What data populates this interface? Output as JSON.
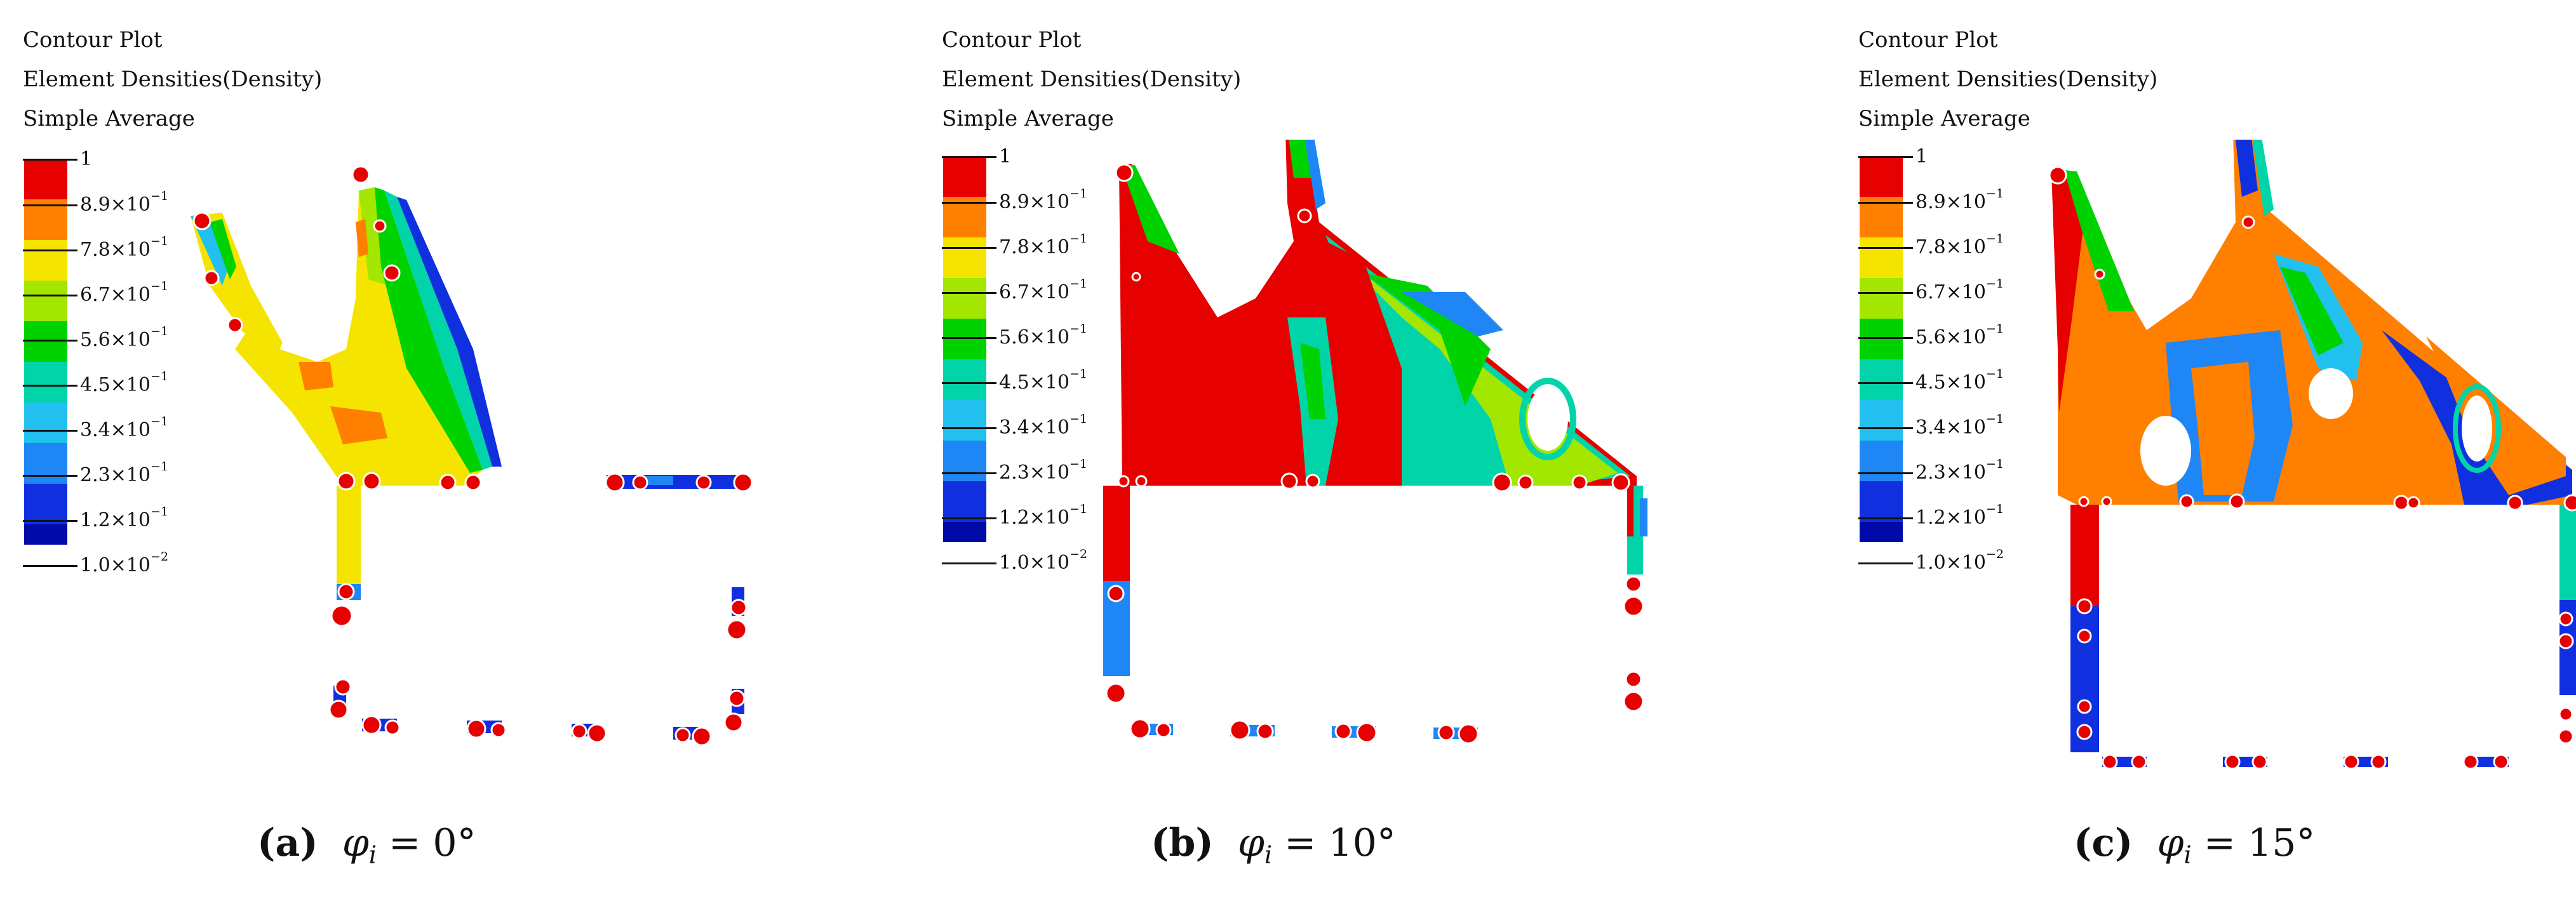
{
  "colors": {
    "red": "#e60000",
    "orange": "#ff7f00",
    "yellow": "#f5e400",
    "lime": "#a3e600",
    "green": "#00d200",
    "teal": "#00d4a8",
    "cyan": "#22c0ee",
    "sky": "#1f86f5",
    "blue": "#1030e0",
    "navy": "#000aa8"
  },
  "legend_colors": [
    "#e60000",
    "#ff7f00",
    "#f5e400",
    "#a3e600",
    "#00d200",
    "#00d4a8",
    "#22c0ee",
    "#1f86f5",
    "#1030e0",
    "#000aa8"
  ],
  "panels": [
    {
      "header_line1": "Contour Plot",
      "header_line2": "Element Densities(Density)",
      "header_line3": "Simple Average",
      "legend_top": "1",
      "legend_base": [
        "8.9×10",
        "7.8×10",
        "6.7×10",
        "5.6×10",
        "4.5×10",
        "3.4×10",
        "2.3×10",
        "1.2×10",
        "1.0×10"
      ],
      "legend_exp": [
        "−1",
        "−1",
        "−1",
        "−1",
        "−1",
        "−1",
        "−1",
        "−1",
        "−2"
      ],
      "caption_label": "(a)",
      "caption_var": "φ",
      "caption_sub": "i",
      "caption_value": " = 0°"
    },
    {
      "header_line1": "Contour Plot",
      "header_line2": "Element Densities(Density)",
      "header_line3": "Simple Average",
      "legend_top": "1",
      "legend_base": [
        "8.9×10",
        "7.8×10",
        "6.7×10",
        "5.6×10",
        "4.5×10",
        "3.4×10",
        "2.3×10",
        "1.2×10",
        "1.0×10"
      ],
      "legend_exp": [
        "−1",
        "−1",
        "−1",
        "−1",
        "−1",
        "−1",
        "−1",
        "−1",
        "−2"
      ],
      "caption_label": "(b)",
      "caption_var": "φ",
      "caption_sub": "i",
      "caption_value": " = 10°"
    },
    {
      "header_line1": "Contour Plot",
      "header_line2": "Element Densities(Density)",
      "header_line3": "Simple Average",
      "legend_top": "1",
      "legend_base": [
        "8.9×10",
        "7.8×10",
        "6.7×10",
        "5.6×10",
        "4.5×10",
        "3.4×10",
        "2.3×10",
        "1.2×10",
        "1.0×10"
      ],
      "legend_exp": [
        "−1",
        "−1",
        "−1",
        "−1",
        "−1",
        "−1",
        "−1",
        "−1",
        "−2"
      ],
      "caption_label": "(c)",
      "caption_var": "φ",
      "caption_sub": "i",
      "caption_value": " = 15°"
    }
  ]
}
